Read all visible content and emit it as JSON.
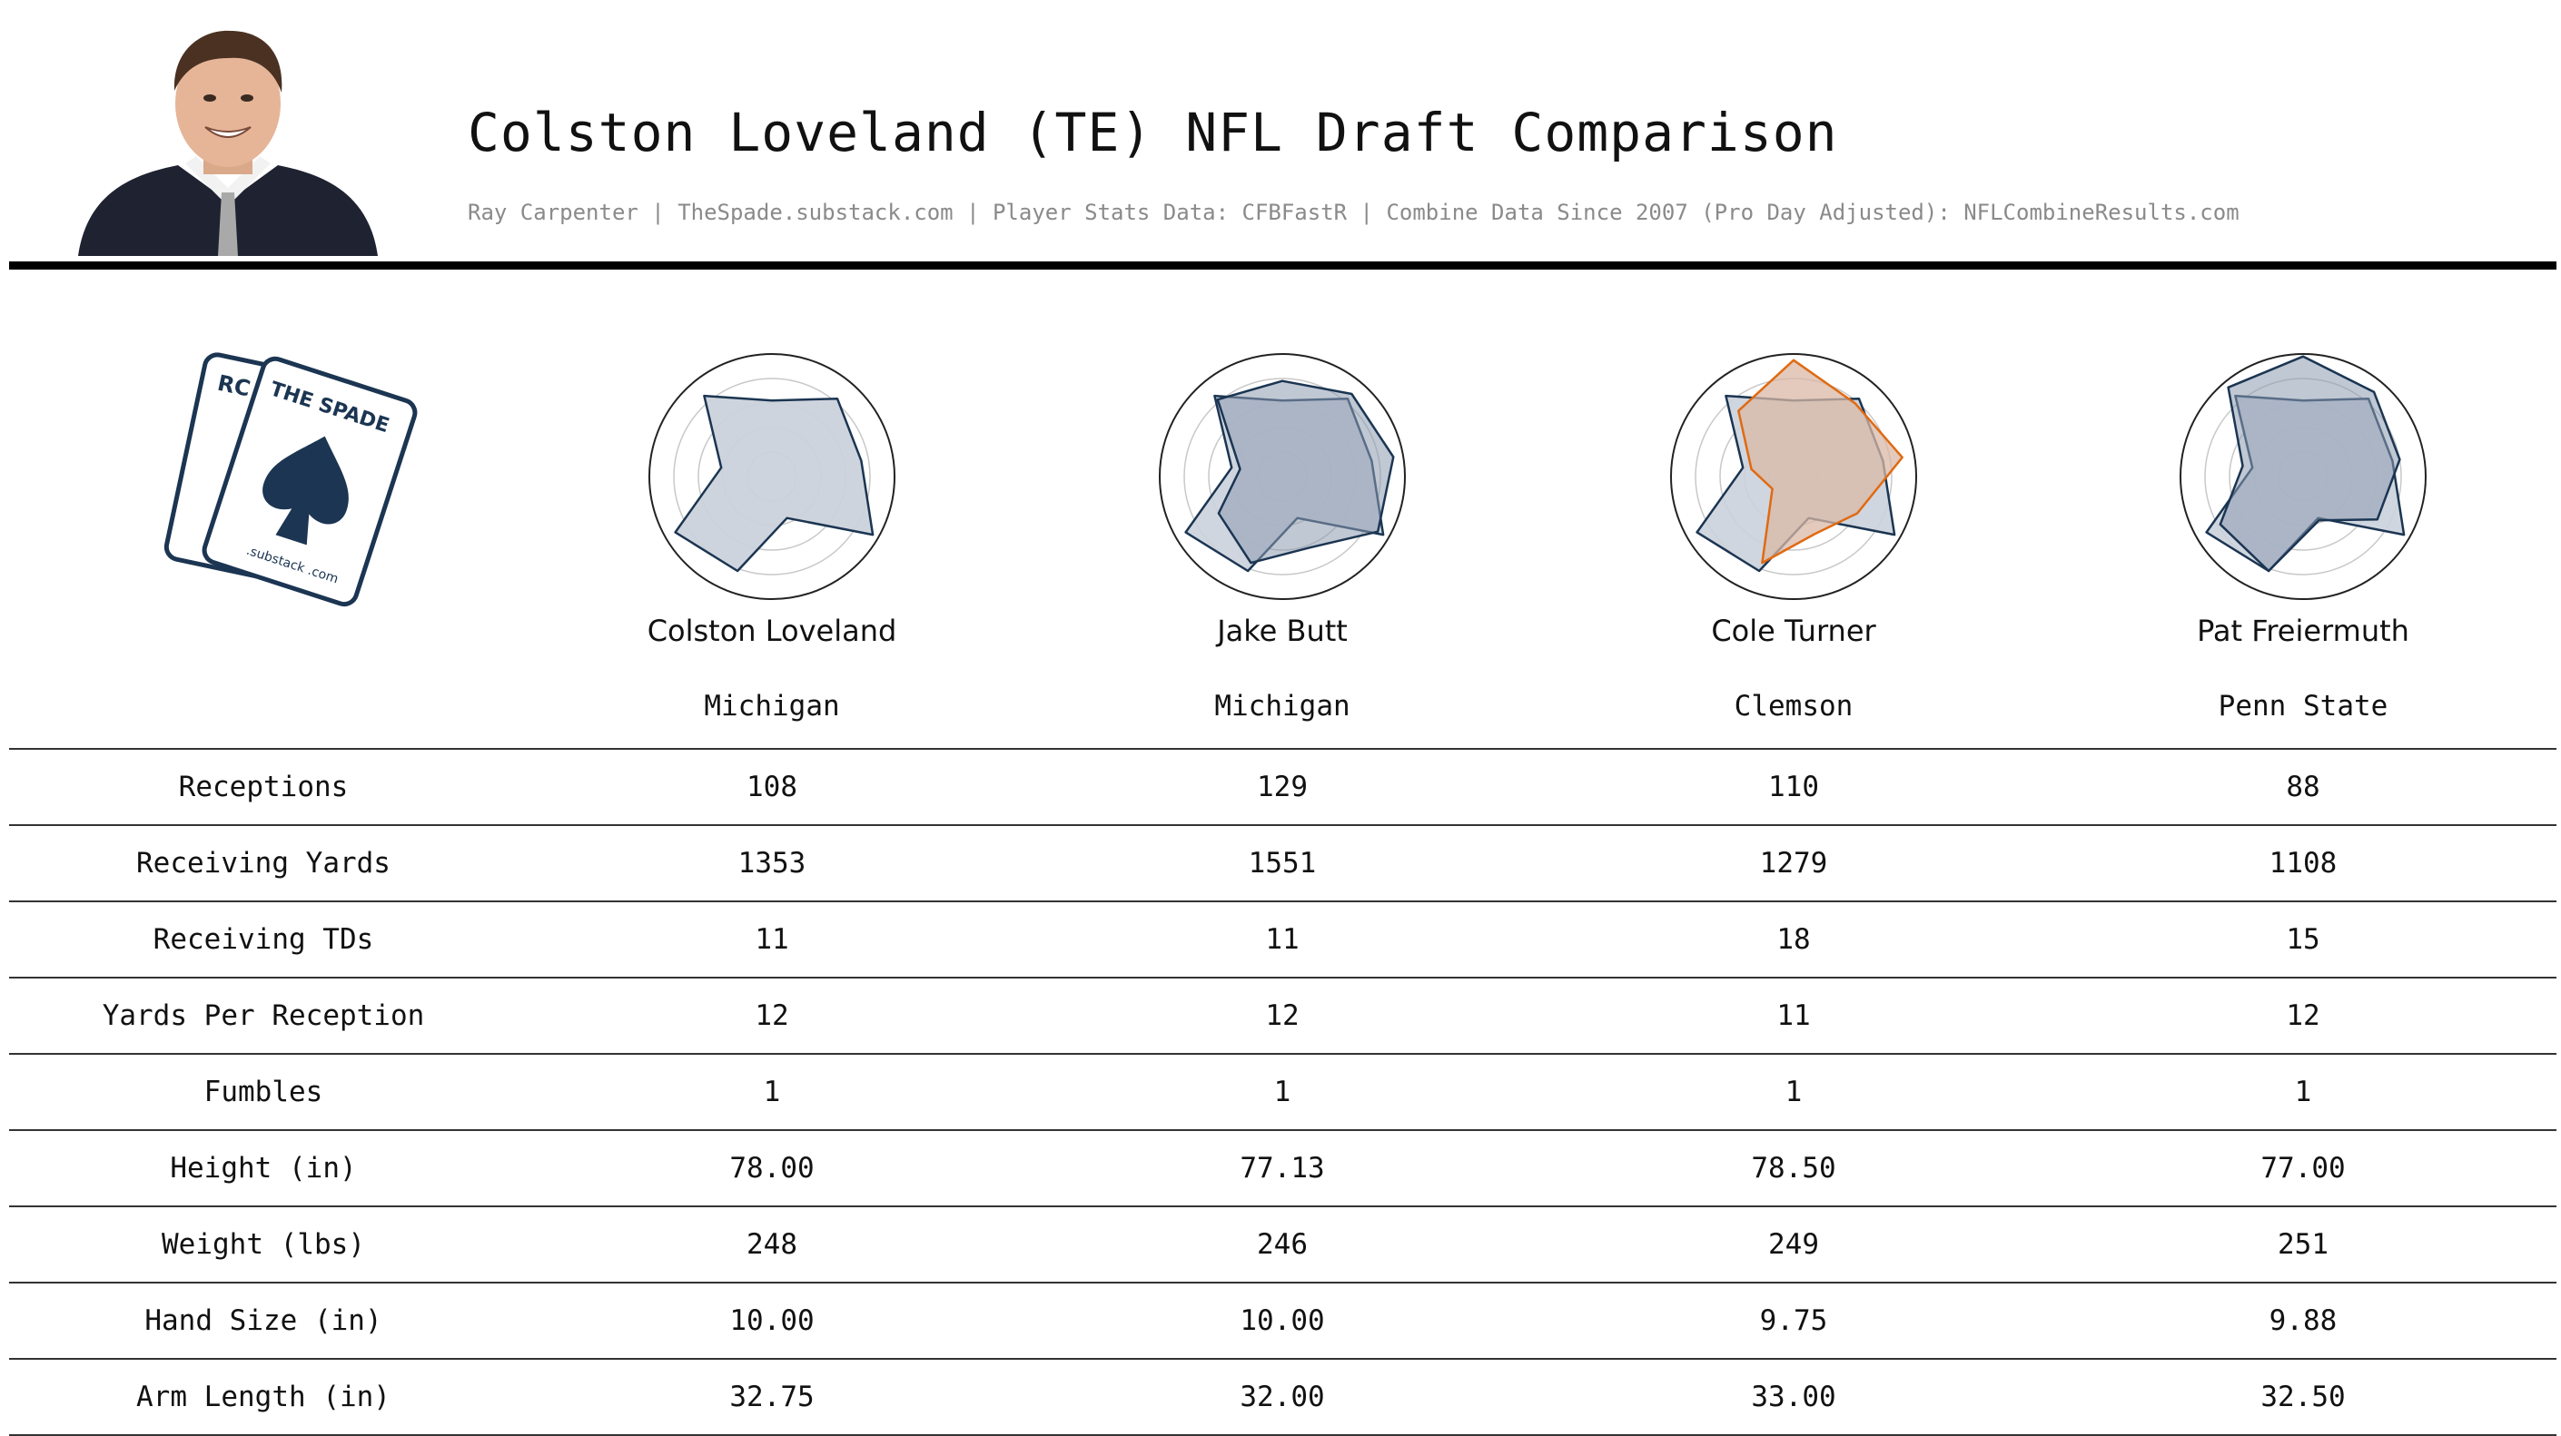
{
  "header": {
    "title": "Colston Loveland (TE) NFL Draft Comparison",
    "subtitle": "Ray Carpenter | TheSpade.substack.com | Player Stats Data: CFBFastR | Combine Data Since 2007 (Pro Day Adjusted): NFLCombineResults.com"
  },
  "logo": {
    "card_back_text": "RC",
    "card_front_text": "THE SPADE",
    "site_text": ".substack .com"
  },
  "colors": {
    "navy": "#1b3552",
    "orange": "#e06a12",
    "fill_light": "#cbd2db",
    "fill_dark": "#8c9bb0",
    "fill_orange": "#d9b8a6"
  },
  "players": [
    {
      "name": "Colston Loveland",
      "school": "Michigan"
    },
    {
      "name": "Jake Butt",
      "school": "Michigan"
    },
    {
      "name": "Cole Turner",
      "school": "Clemson"
    },
    {
      "name": "Pat Freiermuth",
      "school": "Penn State"
    }
  ],
  "table": {
    "rows": [
      {
        "label": "Receptions",
        "values": [
          "108",
          "129",
          "110",
          "88"
        ]
      },
      {
        "label": "Receiving Yards",
        "values": [
          "1353",
          "1551",
          "1279",
          "1108"
        ]
      },
      {
        "label": "Receiving TDs",
        "values": [
          "11",
          "11",
          "18",
          "15"
        ]
      },
      {
        "label": "Yards Per Reception",
        "values": [
          "12",
          "12",
          "11",
          "12"
        ]
      },
      {
        "label": "Fumbles",
        "values": [
          "1",
          "1",
          "1",
          "1"
        ]
      },
      {
        "label": "Height (in)",
        "values": [
          "78.00",
          "77.13",
          "78.50",
          "77.00"
        ]
      },
      {
        "label": "Weight (lbs)",
        "values": [
          "248",
          "246",
          "249",
          "251"
        ]
      },
      {
        "label": "Hand Size (in)",
        "values": [
          "10.00",
          "10.00",
          "9.75",
          "9.88"
        ]
      },
      {
        "label": "Arm Length (in)",
        "values": [
          "32.75",
          "32.00",
          "33.00",
          "32.50"
        ]
      }
    ]
  },
  "chart_data": [
    {
      "type": "radar",
      "player": "Colston Loveland",
      "series": [
        {
          "role": "base",
          "color": "#1b3552",
          "values": [
            0.62,
            0.83,
            0.74,
            0.95,
            0.36,
            0.82,
            0.91,
            0.42,
            0.86
          ]
        }
      ]
    },
    {
      "type": "radar",
      "player": "Jake Butt",
      "series": [
        {
          "role": "base",
          "color": "#1b3552",
          "values": [
            0.62,
            0.83,
            0.74,
            0.95,
            0.36,
            0.82,
            0.91,
            0.42,
            0.86
          ]
        },
        {
          "role": "comparison",
          "color": "#1b3552",
          "values": [
            0.78,
            0.88,
            0.92,
            0.9,
            0.62,
            0.75,
            0.6,
            0.35,
            0.82
          ]
        }
      ]
    },
    {
      "type": "radar",
      "player": "Cole Turner",
      "series": [
        {
          "role": "base",
          "color": "#1b3552",
          "values": [
            0.62,
            0.83,
            0.74,
            0.95,
            0.36,
            0.82,
            0.91,
            0.42,
            0.86
          ]
        },
        {
          "role": "comparison",
          "color": "#e06a12",
          "values": [
            0.95,
            0.78,
            0.9,
            0.6,
            0.5,
            0.75,
            0.2,
            0.35,
            0.7
          ]
        }
      ]
    },
    {
      "type": "radar",
      "player": "Pat Freiermuth",
      "series": [
        {
          "role": "base",
          "color": "#1b3552",
          "values": [
            0.62,
            0.83,
            0.74,
            0.95,
            0.36,
            0.82,
            0.91,
            0.42,
            0.86
          ]
        },
        {
          "role": "comparison",
          "color": "#1b3552",
          "values": [
            0.98,
            0.9,
            0.8,
            0.7,
            0.38,
            0.82,
            0.78,
            0.5,
            0.95
          ]
        }
      ]
    }
  ]
}
